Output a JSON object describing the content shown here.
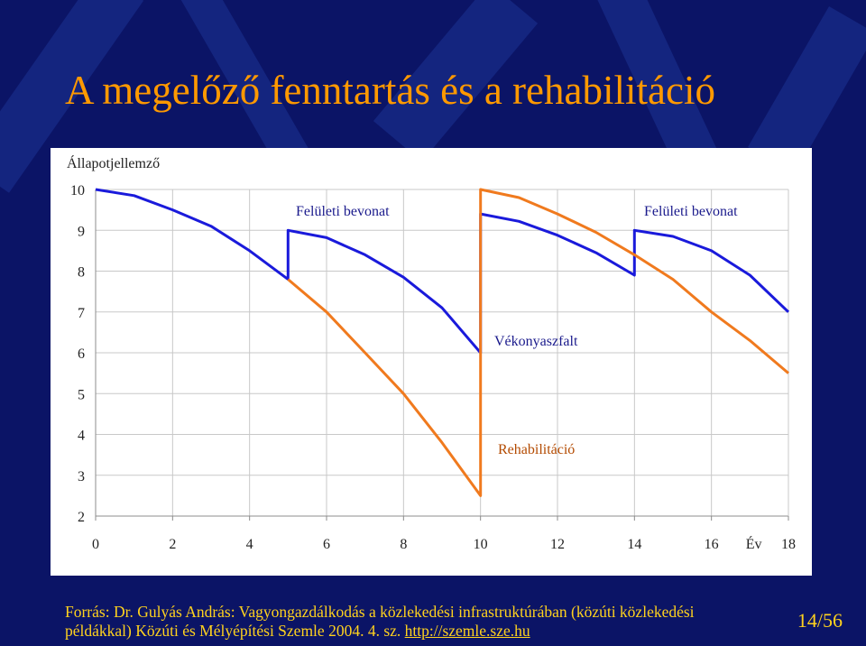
{
  "slide": {
    "title": "A megelőző fenntartás és a rehabilitáció",
    "source_text": "Forrás: Dr. Gulyás András: Vagyongazdálkodás a közlekedési infrastruktúrában (közúti közlekedési példákkal) Közúti és Mélyépítési Szemle 2004. 4. sz. ",
    "source_link": "http://szemle.sze.hu",
    "page_number": "14/56"
  },
  "chart_data": {
    "type": "line",
    "title": "",
    "ylabel": "Állapotjellemző",
    "xlabel": "Év",
    "xlim": [
      0,
      18
    ],
    "ylim": [
      2,
      10
    ],
    "x_ticks": [
      "0",
      "2",
      "4",
      "6",
      "8",
      "10",
      "12",
      "14",
      "16",
      "Év",
      "18"
    ],
    "y_ticks": [
      10,
      9,
      8,
      7,
      6,
      5,
      4,
      3,
      2
    ],
    "annotations": [
      "Felületi bevonat",
      "Felületi bevonat",
      "Vékonyaszfalt",
      "Rehabilitáció"
    ],
    "colors": {
      "blue": "#1a1adb",
      "orange": "#f07a1e",
      "grid": "#c8c8c8"
    },
    "series": [
      {
        "color": "blue",
        "points": [
          [
            0,
            10
          ],
          [
            1,
            9.85
          ],
          [
            2,
            9.5
          ],
          [
            3,
            9.1
          ],
          [
            4,
            8.5
          ],
          [
            5,
            7.8
          ],
          [
            5.0,
            9.0
          ],
          [
            6,
            8.82
          ],
          [
            7,
            8.4
          ],
          [
            8,
            7.85
          ],
          [
            9,
            7.1
          ],
          [
            10,
            6.0
          ],
          [
            10,
            9.4
          ],
          [
            11,
            9.22
          ],
          [
            12,
            8.88
          ],
          [
            13,
            8.45
          ],
          [
            14,
            7.9
          ],
          [
            14.0,
            9.0
          ],
          [
            15,
            8.85
          ],
          [
            16,
            8.5
          ],
          [
            17,
            7.9
          ],
          [
            18,
            7.0
          ]
        ]
      },
      {
        "color": "orange",
        "points": [
          [
            5,
            7.8
          ],
          [
            6,
            7.0
          ],
          [
            7,
            6.0
          ],
          [
            8,
            5.0
          ],
          [
            9,
            3.8
          ],
          [
            10,
            2.5
          ],
          [
            10,
            10
          ],
          [
            11,
            9.8
          ],
          [
            12,
            9.4
          ],
          [
            13,
            8.95
          ],
          [
            14,
            8.4
          ],
          [
            15,
            7.8
          ],
          [
            16,
            7.0
          ],
          [
            17,
            6.3
          ],
          [
            18,
            5.5
          ]
        ]
      }
    ]
  }
}
